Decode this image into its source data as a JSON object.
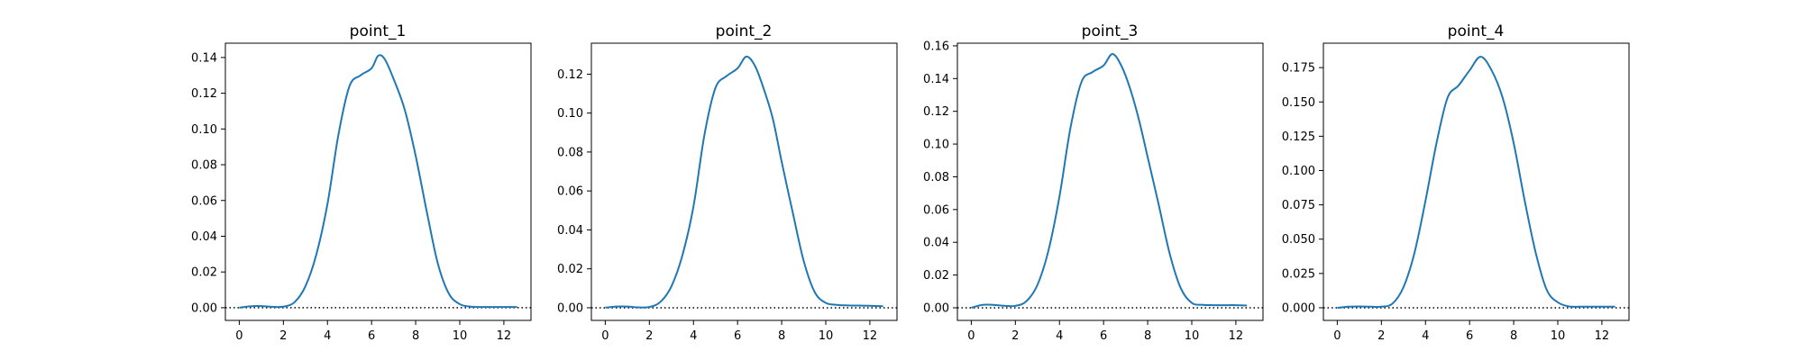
{
  "chart_data": [
    {
      "type": "line",
      "title": "point_1",
      "xlabel": "",
      "ylabel": "",
      "xlim": [
        -0.63,
        13.23
      ],
      "ylim": [
        -0.0071,
        0.148
      ],
      "xticks": [
        0,
        2,
        4,
        6,
        8,
        10,
        12
      ],
      "yticks": [
        0.0,
        0.02,
        0.04,
        0.06,
        0.08,
        0.1,
        0.12,
        0.14
      ],
      "ytick_labels": [
        "0.00",
        "0.02",
        "0.04",
        "0.06",
        "0.08",
        "0.10",
        "0.12",
        "0.14"
      ],
      "series_color": "#1f77b4",
      "reference_line": {
        "y": 0,
        "style": "dotted",
        "color": "#000000"
      },
      "grid": false,
      "legend": "none",
      "series": [
        {
          "x": [
            0,
            0.5,
            1,
            1.5,
            2,
            2.5,
            3,
            3.5,
            4,
            4.5,
            5,
            5.5,
            6,
            6.3,
            6.6,
            7,
            7.5,
            8,
            8.5,
            9,
            9.5,
            10,
            10.5,
            11,
            11.5,
            12,
            12.6
          ],
          "y": [
            0.0,
            0.0008,
            0.0009,
            0.0005,
            0.0006,
            0.003,
            0.012,
            0.03,
            0.058,
            0.097,
            0.124,
            0.13,
            0.134,
            0.141,
            0.139,
            0.128,
            0.111,
            0.085,
            0.054,
            0.025,
            0.008,
            0.002,
            0.0006,
            0.0004,
            0.0004,
            0.0004,
            0.0004
          ]
        }
      ]
    },
    {
      "type": "line",
      "title": "point_2",
      "xlabel": "",
      "ylabel": "",
      "xlim": [
        -0.63,
        13.23
      ],
      "ylim": [
        -0.0065,
        0.1359
      ],
      "xticks": [
        0,
        2,
        4,
        6,
        8,
        10,
        12
      ],
      "yticks": [
        0.0,
        0.02,
        0.04,
        0.06,
        0.08,
        0.1,
        0.12
      ],
      "ytick_labels": [
        "0.00",
        "0.02",
        "0.04",
        "0.06",
        "0.08",
        "0.10",
        "0.12"
      ],
      "series_color": "#1f77b4",
      "reference_line": {
        "y": 0,
        "style": "dotted",
        "color": "#000000"
      },
      "grid": false,
      "legend": "none",
      "series": [
        {
          "x": [
            0,
            0.5,
            1,
            1.5,
            2,
            2.5,
            3,
            3.5,
            4,
            4.5,
            5,
            5.5,
            6,
            6.4,
            6.8,
            7.2,
            7.6,
            8,
            8.5,
            9,
            9.5,
            10,
            10.5,
            11,
            11.5,
            12,
            12.6
          ],
          "y": [
            0.0,
            0.0006,
            0.0006,
            0.0002,
            0.0004,
            0.003,
            0.011,
            0.027,
            0.052,
            0.089,
            0.113,
            0.119,
            0.123,
            0.129,
            0.124,
            0.112,
            0.097,
            0.075,
            0.049,
            0.024,
            0.008,
            0.0025,
            0.0015,
            0.0012,
            0.0011,
            0.001,
            0.0008
          ]
        }
      ]
    },
    {
      "type": "line",
      "title": "point_3",
      "xlabel": "",
      "ylabel": "",
      "xlim": [
        -0.63,
        13.23
      ],
      "ylim": [
        -0.0077,
        0.1616
      ],
      "xticks": [
        0,
        2,
        4,
        6,
        8,
        10,
        12
      ],
      "yticks": [
        0.0,
        0.02,
        0.04,
        0.06,
        0.08,
        0.1,
        0.12,
        0.14,
        0.16
      ],
      "ytick_labels": [
        "0.00",
        "0.02",
        "0.04",
        "0.06",
        "0.08",
        "0.10",
        "0.12",
        "0.14",
        "0.16"
      ],
      "series_color": "#1f77b4",
      "reference_line": {
        "y": 0,
        "style": "dotted",
        "color": "#000000"
      },
      "grid": false,
      "legend": "none",
      "series": [
        {
          "x": [
            0,
            0.5,
            1,
            1.5,
            2,
            2.5,
            3,
            3.5,
            4,
            4.5,
            5,
            5.5,
            6,
            6.4,
            6.8,
            7.2,
            7.6,
            8,
            8.5,
            9,
            9.5,
            10,
            10.5,
            11,
            11.5,
            12,
            12.5
          ],
          "y": [
            0.0,
            0.0018,
            0.0018,
            0.0012,
            0.0012,
            0.004,
            0.014,
            0.035,
            0.068,
            0.11,
            0.138,
            0.144,
            0.148,
            0.155,
            0.148,
            0.134,
            0.115,
            0.092,
            0.063,
            0.033,
            0.012,
            0.003,
            0.0018,
            0.0016,
            0.0016,
            0.0016,
            0.0014
          ]
        }
      ]
    },
    {
      "type": "line",
      "title": "point_4",
      "xlabel": "",
      "ylabel": "",
      "xlim": [
        -0.63,
        13.23
      ],
      "ylim": [
        -0.0092,
        0.1928
      ],
      "xticks": [
        0,
        2,
        4,
        6,
        8,
        10,
        12
      ],
      "yticks": [
        0.0,
        0.025,
        0.05,
        0.075,
        0.1,
        0.125,
        0.15,
        0.175
      ],
      "ytick_labels": [
        "0.000",
        "0.025",
        "0.050",
        "0.075",
        "0.100",
        "0.125",
        "0.150",
        "0.175"
      ],
      "series_color": "#1f77b4",
      "reference_line": {
        "y": 0,
        "style": "dotted",
        "color": "#000000"
      },
      "grid": false,
      "legend": "none",
      "series": [
        {
          "x": [
            0,
            0.5,
            1,
            1.5,
            2,
            2.5,
            3,
            3.5,
            4,
            4.5,
            5,
            5.5,
            6,
            6.5,
            7,
            7.5,
            8,
            8.5,
            9,
            9.5,
            10,
            10.5,
            11,
            11.5,
            12,
            12.6
          ],
          "y": [
            0.0,
            0.0008,
            0.001,
            0.0008,
            0.0008,
            0.003,
            0.015,
            0.04,
            0.078,
            0.12,
            0.153,
            0.162,
            0.173,
            0.183,
            0.173,
            0.153,
            0.12,
            0.078,
            0.04,
            0.013,
            0.004,
            0.001,
            0.0008,
            0.0008,
            0.0008,
            0.0008
          ]
        }
      ]
    }
  ]
}
